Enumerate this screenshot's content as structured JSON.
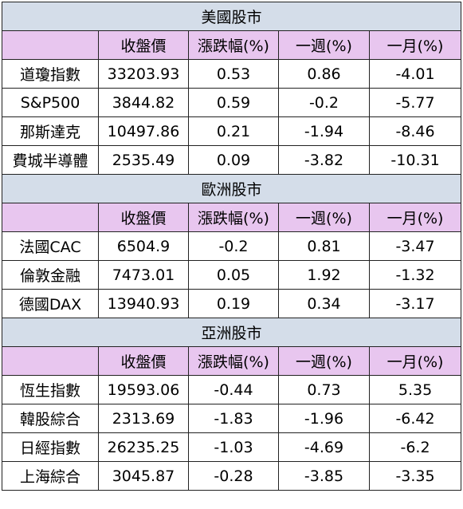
{
  "columns": [
    "",
    "收盤價",
    "漲跌幅(%)",
    "一週(%)",
    "一月(%)"
  ],
  "sections": [
    {
      "title": "美國股市",
      "rows": [
        [
          "道瓊指數",
          "33203.93",
          "0.53",
          "0.86",
          "-4.01"
        ],
        [
          "S&P500",
          "3844.82",
          "0.59",
          "-0.2",
          "-5.77"
        ],
        [
          "那斯達克",
          "10497.86",
          "0.21",
          "-1.94",
          "-8.46"
        ],
        [
          "費城半導體",
          "2535.49",
          "0.09",
          "-3.82",
          "-10.31"
        ]
      ]
    },
    {
      "title": "歐洲股市",
      "rows": [
        [
          "法國CAC",
          "6504.9",
          "-0.2",
          "0.81",
          "-3.47"
        ],
        [
          "倫敦金融",
          "7473.01",
          "0.05",
          "1.92",
          "-1.32"
        ],
        [
          "德國DAX",
          "13940.93",
          "0.19",
          "0.34",
          "-3.17"
        ]
      ]
    },
    {
      "title": "亞洲股市",
      "rows": [
        [
          "恆生指數",
          "19593.06",
          "-0.44",
          "0.73",
          "5.35"
        ],
        [
          "韓股綜合",
          "2313.69",
          "-1.83",
          "-1.96",
          "-6.42"
        ],
        [
          "日經指數",
          "26235.25",
          "-1.03",
          "-4.69",
          "-6.2"
        ],
        [
          "上海綜合",
          "3045.87",
          "-0.28",
          "-3.85",
          "-3.35"
        ]
      ]
    }
  ]
}
